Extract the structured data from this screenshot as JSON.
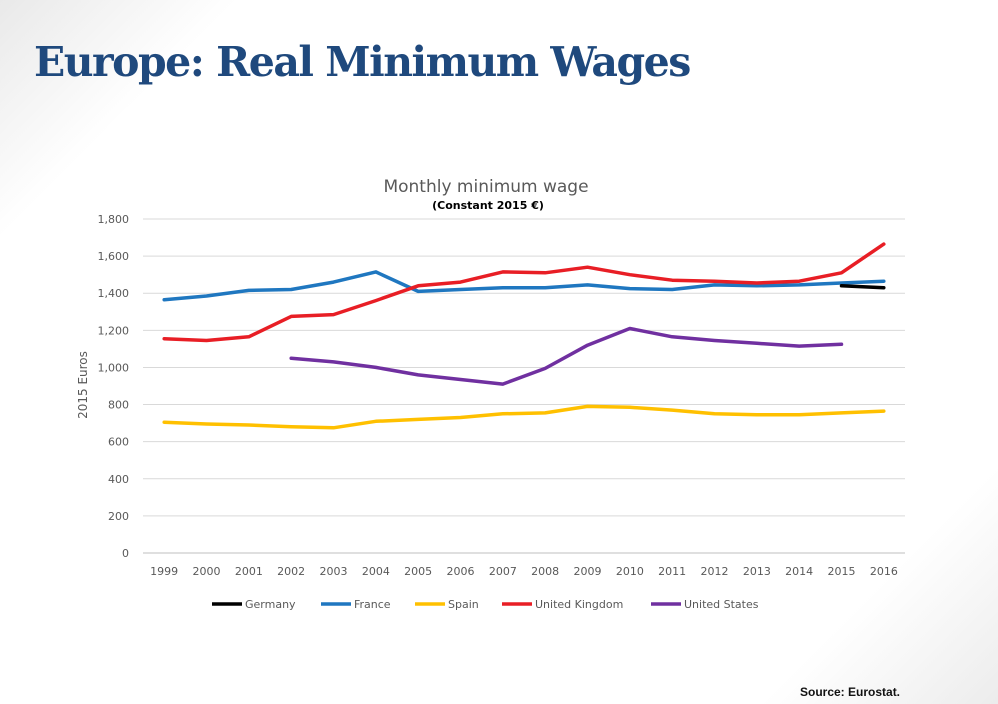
{
  "slide": {
    "title": "Europe: Real Minimum Wages",
    "source": "Source: Eurostat."
  },
  "chart_data": {
    "type": "line",
    "title": "Monthly minimum wage",
    "subtitle": "(Constant 2015 €)",
    "xlabel": "",
    "ylabel": "2015 Euros",
    "ylim": [
      0,
      1800
    ],
    "yticks": [
      0,
      200,
      400,
      600,
      800,
      1000,
      1200,
      1400,
      1600,
      1800
    ],
    "ytick_labels": [
      "0",
      "200",
      "400",
      "600",
      "800",
      "1,000",
      "1,200",
      "1,400",
      "1,600",
      "1,800"
    ],
    "categories": [
      "1999",
      "2000",
      "2001",
      "2002",
      "2003",
      "2004",
      "2005",
      "2006",
      "2007",
      "2008",
      "2009",
      "2010",
      "2011",
      "2012",
      "2013",
      "2014",
      "2015",
      "2016"
    ],
    "grid": true,
    "legend_position": "bottom",
    "series": [
      {
        "name": "Germany",
        "color": "#000000",
        "values": [
          null,
          null,
          null,
          null,
          null,
          null,
          null,
          null,
          null,
          null,
          null,
          null,
          null,
          null,
          null,
          null,
          1440,
          1430
        ]
      },
      {
        "name": "France",
        "color": "#1f77c0",
        "values": [
          1365,
          1385,
          1415,
          1420,
          1460,
          1515,
          1410,
          1420,
          1430,
          1430,
          1445,
          1425,
          1420,
          1445,
          1440,
          1445,
          1455,
          1465
        ]
      },
      {
        "name": "Spain",
        "color": "#ffc000",
        "values": [
          705,
          695,
          690,
          680,
          675,
          710,
          720,
          730,
          750,
          755,
          790,
          785,
          770,
          750,
          745,
          745,
          755,
          765
        ]
      },
      {
        "name": "United Kingdom",
        "color": "#e81e25",
        "values": [
          1155,
          1145,
          1165,
          1275,
          1285,
          1360,
          1440,
          1460,
          1515,
          1510,
          1540,
          1500,
          1470,
          1465,
          1455,
          1465,
          1510,
          1665
        ]
      },
      {
        "name": "United States",
        "color": "#7030a0",
        "values": [
          null,
          null,
          null,
          1050,
          1030,
          1000,
          960,
          935,
          910,
          995,
          1120,
          1210,
          1165,
          1145,
          1130,
          1115,
          1125,
          null
        ]
      }
    ]
  }
}
